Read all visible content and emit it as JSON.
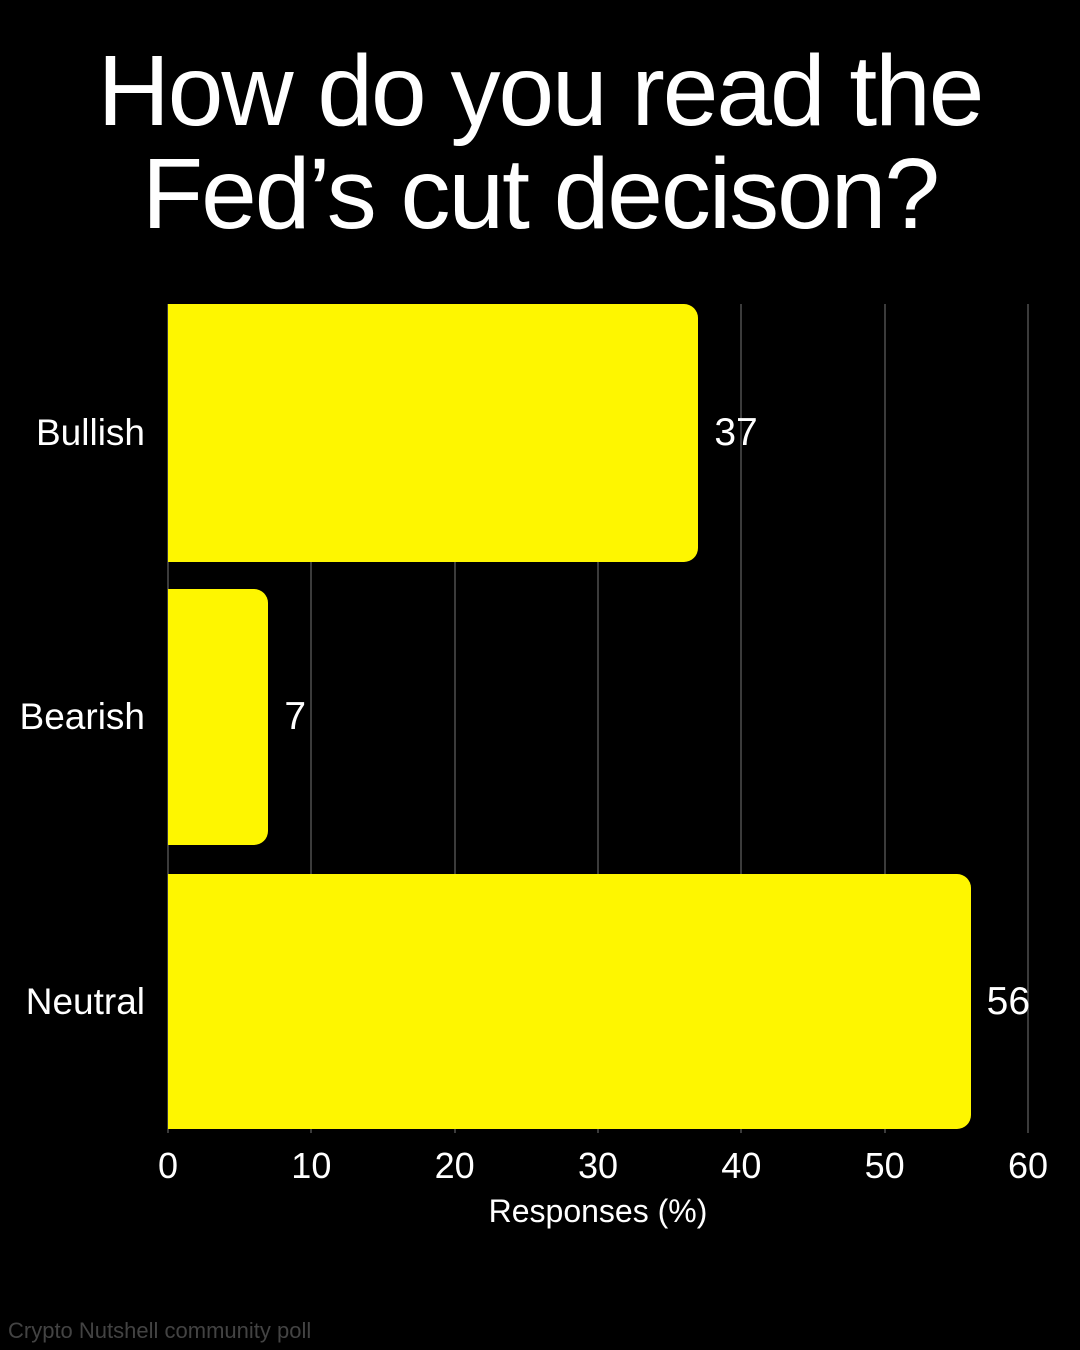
{
  "chart_data": {
    "type": "bar",
    "orientation": "horizontal",
    "title": "How do you read the Fed’s cut decison?",
    "title_lines": [
      "How do you read the",
      "Fed’s cut decison?"
    ],
    "categories": [
      "Bullish",
      "Bearish",
      "Neutral"
    ],
    "values": [
      37,
      7,
      56
    ],
    "value_labels": [
      "37",
      "7",
      "56"
    ],
    "xlabel": "Responses (%)",
    "xlim": [
      0,
      60
    ],
    "xticks": [
      0,
      10,
      20,
      30,
      40,
      50,
      60
    ],
    "grid": "vertical-gridlines-on",
    "legend": "none",
    "colors": {
      "background": "#000000",
      "bar": "#fef600",
      "text": "#ffffff",
      "gridline": "#3b3b3b",
      "credit_text": "#434343"
    }
  },
  "footer": {
    "credit": "Crypto Nutshell community poll"
  }
}
